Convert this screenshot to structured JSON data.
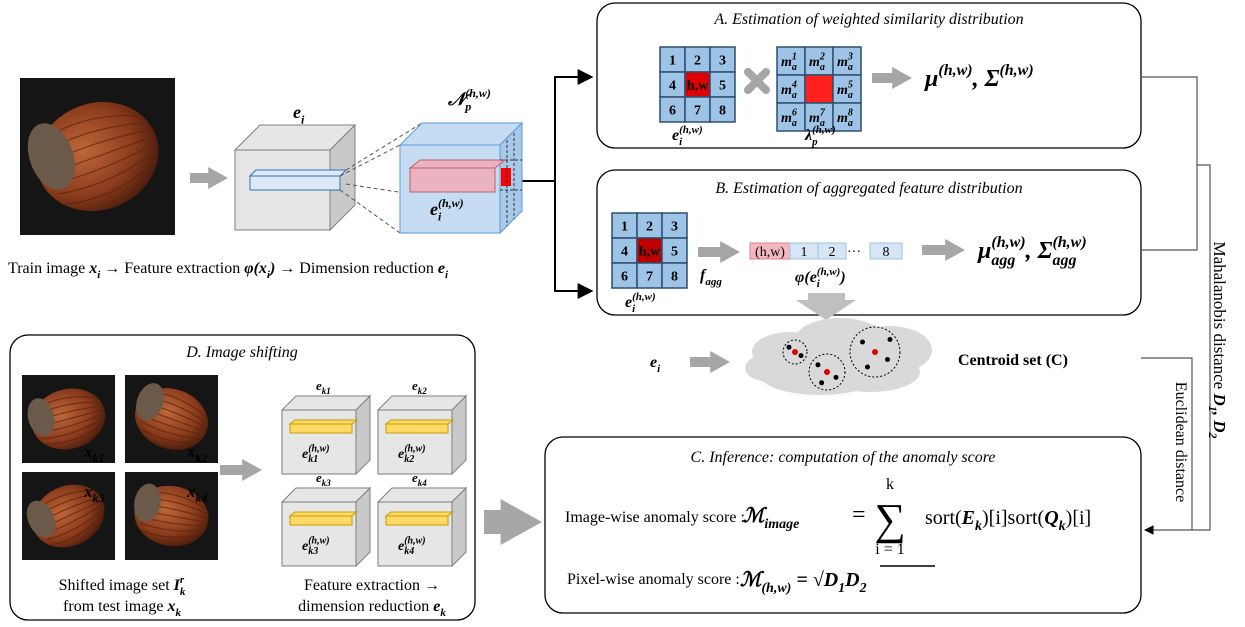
{
  "input": {
    "cube_label": {
      "t": "e",
      "sub": "i"
    },
    "neighborhood_label": {
      "t": "𝒩",
      "sub": "p",
      "sup": "(h,w)"
    },
    "feature_label": {
      "t": "e",
      "sub": "i",
      "sup": "(h,w)"
    },
    "caption": [
      "Train image ",
      {
        "t": "x",
        "sub": "i"
      },
      " → Feature extraction ",
      {
        "t": "φ(x",
        "sub": "i"
      },
      {
        "t": ")"
      },
      " → Dimension reduction ",
      {
        "t": "e",
        "sub": "i"
      }
    ]
  },
  "section_a": {
    "title": "A. Estimation of weighted similarity distribution",
    "grid": [
      "1",
      "2",
      "3",
      "4",
      "h,w",
      "5",
      "6",
      "7",
      "8"
    ],
    "grid_label": {
      "t": "e",
      "sub": "i",
      "sup": "(h,w)"
    },
    "weights": [
      {
        "t": "m",
        "sub": "a",
        "sup": "1"
      },
      {
        "t": "m",
        "sub": "a",
        "sup": "2"
      },
      {
        "t": "m",
        "sub": "a",
        "sup": "3"
      },
      {
        "t": "m",
        "sub": "a",
        "sup": "4"
      },
      {
        "t": "m",
        "sub": "a",
        "sup": "5"
      },
      {
        "t": "m",
        "sub": "a",
        "sup": "6"
      },
      {
        "t": "m",
        "sub": "a",
        "sup": "7"
      },
      {
        "t": "m",
        "sub": "a",
        "sup": "8"
      }
    ],
    "weight_label": {
      "t": "λ",
      "sub": "p",
      "sup": "(h,w)"
    },
    "result": [
      {
        "t": "μ",
        "sup": "(h,w)"
      },
      {
        "t": ", Σ",
        "sup": "(h,w)"
      }
    ]
  },
  "section_b": {
    "title": "B. Estimation of aggregated feature distribution",
    "grid": [
      "1",
      "2",
      "3",
      "4",
      "h,w",
      "5",
      "6",
      "7",
      "8"
    ],
    "grid_label": {
      "t": "e",
      "sub": "i",
      "sup": "(h,w)"
    },
    "agg_label": {
      "t": "f",
      "sub": "agg"
    },
    "vector": [
      "(h,w)",
      "1",
      "2",
      "8"
    ],
    "vector_ellipsis": "···",
    "vector_label": [
      {
        "t": "φ(e",
        "sub": "i",
        "sup": "(h,w)"
      },
      {
        "t": ")"
      }
    ],
    "result": [
      {
        "t": "μ",
        "sub": "agg",
        "sup": "(h,w)"
      },
      {
        "t": ", Σ",
        "sub": "agg",
        "sup": "(h,w)"
      }
    ],
    "input_label": {
      "t": "e",
      "sub": "i"
    },
    "centroid_label": "Centroid set (C)"
  },
  "section_c": {
    "title": "C. Inference: computation of the anomaly score",
    "image_score_label": "Image-wise anomaly score :",
    "image_score_symbol": {
      "t": "ℳ",
      "sub": "image"
    },
    "equals": "=",
    "sum": "∑",
    "sum_upper": "k",
    "sum_lower": "i = 1",
    "summand": [
      "sort(",
      {
        "t": "E",
        "sub": "k"
      },
      ")[i]sort(",
      {
        "t": "Q",
        "sub": "k"
      },
      ")[i]"
    ],
    "pixel_score_label": "Pixel-wise anomaly score :",
    "pixel_score": [
      {
        "t": "ℳ",
        "sub": "(h,w)"
      },
      {
        "t": " = √"
      },
      {
        "t": "D",
        "sub": "1"
      },
      {
        "t": "D",
        "sub": "2"
      }
    ]
  },
  "section_d": {
    "title": "D. Image shifting",
    "images": [
      {
        "t": "x",
        "sub": "k1"
      },
      {
        "t": "x",
        "sub": "k2"
      },
      {
        "t": "x",
        "sub": "k3"
      },
      {
        "t": "x",
        "sub": "k4"
      }
    ],
    "features": [
      {
        "t": "e",
        "sub": "k1"
      },
      {
        "t": "e",
        "sub": "k2"
      },
      {
        "t": "e",
        "sub": "k3"
      },
      {
        "t": "e",
        "sub": "k4"
      }
    ],
    "feature_maps": [
      {
        "t": "e",
        "sub": "k1",
        "sup": "(h,w)"
      },
      {
        "t": "e",
        "sub": "k2",
        "sup": "(h,w)"
      },
      {
        "t": "e",
        "sub": "k3",
        "sup": "(h,w)"
      },
      {
        "t": "e",
        "sub": "k4",
        "sup": "(h,w)"
      }
    ],
    "caption_1": [
      "Shifted image set ",
      {
        "t": "I",
        "sub": "k",
        "sup": "r"
      }
    ],
    "caption_2": [
      "from test image ",
      {
        "t": "x",
        "sub": "k"
      }
    ],
    "caption_3": "Feature extraction →",
    "caption_4": [
      "dimension reduction ",
      {
        "t": "e",
        "sub": "k"
      }
    ]
  },
  "distances": {
    "mahalanobis": [
      "Mahalanobis distance ",
      {
        "t": "D",
        "sub": "1"
      },
      {
        "t": ", D",
        "sub": "2"
      }
    ],
    "euclidean": "Euclidean distance"
  }
}
